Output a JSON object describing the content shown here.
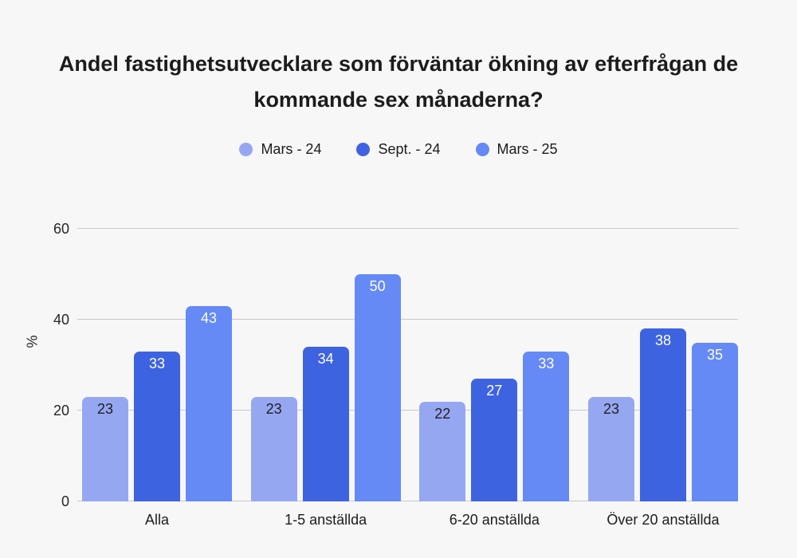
{
  "page": {
    "background_color": "#f7f7f8"
  },
  "title": {
    "lines": [
      "Andel fastighetsutvecklare som förväntar ökning av efterfrågan de",
      "kommande sex månaderna?"
    ]
  },
  "chart_data": {
    "type": "bar",
    "title": "Andel fastighetsutvecklare som förväntar ökning av efterfrågan de kommande sex månaderna?",
    "categories": [
      "Alla",
      "1-5 anställda",
      "6-20 anställda",
      "Över 20 anställda"
    ],
    "series": [
      {
        "name": "Mars - 24",
        "values": [
          23,
          23,
          22,
          23
        ],
        "color": "#96a7f2",
        "value_label_color": "#1f1f1f"
      },
      {
        "name": "Sept. - 24",
        "values": [
          33,
          34,
          27,
          38
        ],
        "color": "#3e63e1",
        "value_label_color": "#ffffff"
      },
      {
        "name": "Mars - 25",
        "values": [
          43,
          50,
          33,
          35
        ],
        "color": "#6589f5",
        "value_label_color": "#ffffff"
      }
    ],
    "xlabel": "",
    "ylabel": "%",
    "ylim": [
      0,
      60
    ],
    "yticks": [
      0,
      20,
      40,
      60
    ],
    "grid": true,
    "legend_position": "top-center",
    "bar_value_labels": true,
    "gridline_color": "#c9c9c9"
  }
}
